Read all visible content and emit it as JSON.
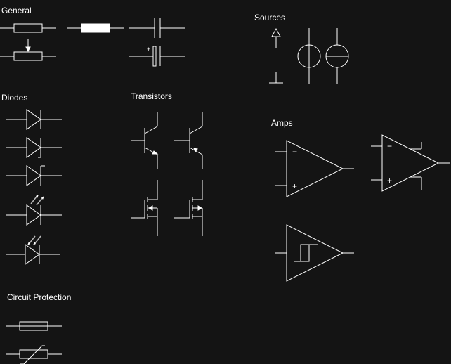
{
  "colors": {
    "background": "#141414",
    "stroke": "#ffffff",
    "led_arrow": "#bbbbbb"
  },
  "sections": {
    "general": "General",
    "sources": "Sources",
    "diodes": "Diodes",
    "transistors": "Transistors",
    "amps": "Amps",
    "circuit_protection": "Circuit Protection"
  },
  "symbols": {
    "general": [
      "resistor-icon",
      "resistor-solid-icon",
      "capacitor-icon",
      "potentiometer-icon",
      "polarized-capacitor-icon"
    ],
    "sources": [
      "ground-arrow-icon",
      "ac-source-icon",
      "current-source-icon"
    ],
    "diodes": [
      "diode-icon",
      "schottky-diode-icon",
      "zener-diode-icon",
      "led-icon",
      "photodiode-icon"
    ],
    "transistors": [
      "npn-transistor-icon",
      "pnp-transistor-icon",
      "n-mosfet-icon",
      "p-mosfet-icon"
    ],
    "amps": [
      "op-amp-icon",
      "op-amp-icon",
      "schmitt-trigger-icon"
    ],
    "circuit_protection": [
      "fuse-icon",
      "varistor-icon"
    ]
  },
  "marks": {
    "minus": "−",
    "plus": "+",
    "small_plus": "+"
  }
}
